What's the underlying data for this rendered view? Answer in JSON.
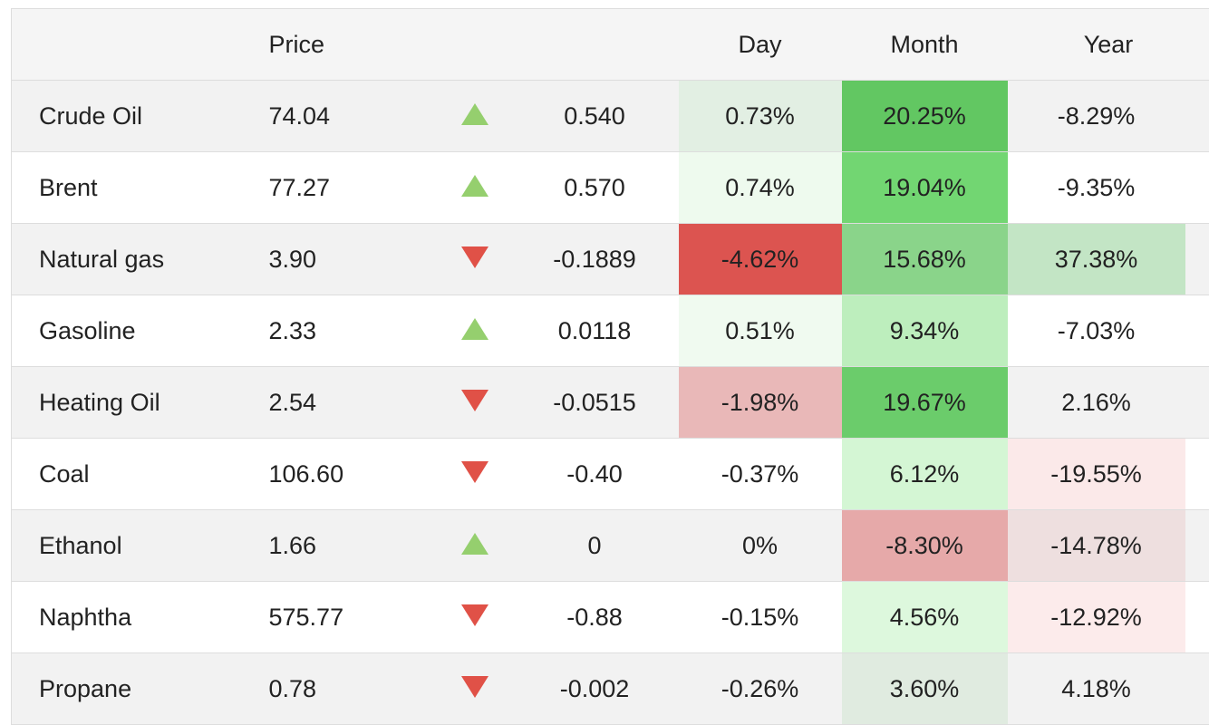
{
  "header": {
    "name": "",
    "price": "Price",
    "arrow": "",
    "change": "",
    "day": "Day",
    "month": "Month",
    "year": "Year"
  },
  "rows": [
    {
      "name": "Crude Oil",
      "price": "74.04",
      "direction": "up",
      "change": "0.540",
      "day": "0.73%",
      "month": "20.25%",
      "year": "-8.29%",
      "day_bg": "#e2efe3",
      "month_bg": "#62c762",
      "year_bg": ""
    },
    {
      "name": "Brent",
      "price": "77.27",
      "direction": "up",
      "change": "0.570",
      "day": "0.74%",
      "month": "19.04%",
      "year": "-9.35%",
      "day_bg": "#eefaee",
      "month_bg": "#72d672",
      "year_bg": ""
    },
    {
      "name": "Natural gas",
      "price": "3.90",
      "direction": "down",
      "change": "-0.1889",
      "day": "-4.62%",
      "month": "15.68%",
      "year": "37.38%",
      "day_bg": "#dc5450",
      "month_bg": "#8ad48a",
      "year_bg": "#c3e5c5"
    },
    {
      "name": "Gasoline",
      "price": "2.33",
      "direction": "up",
      "change": "0.0118",
      "day": "0.51%",
      "month": "9.34%",
      "year": "-7.03%",
      "day_bg": "#f0faf0",
      "month_bg": "#bdeebd",
      "year_bg": ""
    },
    {
      "name": "Heating Oil",
      "price": "2.54",
      "direction": "down",
      "change": "-0.0515",
      "day": "-1.98%",
      "month": "19.67%",
      "year": "2.16%",
      "day_bg": "#e9b8b8",
      "month_bg": "#6bcc6b",
      "year_bg": ""
    },
    {
      "name": "Coal",
      "price": "106.60",
      "direction": "down",
      "change": "-0.40",
      "day": "-0.37%",
      "month": "6.12%",
      "year": "-19.55%",
      "day_bg": "",
      "month_bg": "#d4f6d4",
      "year_bg": "#fbe9e9"
    },
    {
      "name": "Ethanol",
      "price": "1.66",
      "direction": "up",
      "change": "0",
      "day": "0%",
      "month": "-8.30%",
      "year": "-14.78%",
      "day_bg": "",
      "month_bg": "#e6a9a9",
      "year_bg": "#eedfdf"
    },
    {
      "name": "Naphtha",
      "price": "575.77",
      "direction": "down",
      "change": "-0.88",
      "day": "-0.15%",
      "month": "4.56%",
      "year": "-12.92%",
      "day_bg": "",
      "month_bg": "#ddf8dd",
      "year_bg": "#fcebeb"
    },
    {
      "name": "Propane",
      "price": "0.78",
      "direction": "down",
      "change": "-0.002",
      "day": "-0.26%",
      "month": "3.60%",
      "year": "4.18%",
      "day_bg": "",
      "month_bg": "#e0ebe0",
      "year_bg": ""
    }
  ],
  "colors": {
    "up_arrow": "#95cf6e",
    "down_arrow": "#e05147",
    "header_bg": "#f5f5f5",
    "row_alt_bg": "#f2f2f2",
    "border": "#dddddd"
  }
}
